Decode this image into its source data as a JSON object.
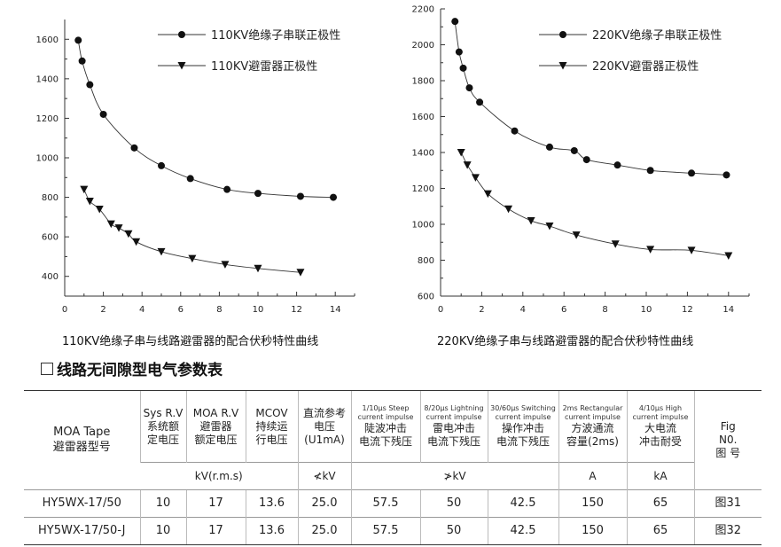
{
  "chart_data": [
    {
      "type": "scatter",
      "title": "",
      "xlim": [
        0,
        15
      ],
      "ylim": [
        300,
        1700
      ],
      "xticks": [
        "0",
        "2",
        "4",
        "6",
        "8",
        "10",
        "12",
        "14"
      ],
      "yticks": [
        "400",
        "600",
        "800",
        "1000",
        "1200",
        "1400",
        "1600"
      ],
      "legend_position": "top-right",
      "series": [
        {
          "name": "110KV绝缘子串联正极性",
          "marker": "circle",
          "x": [
            0.7,
            0.9,
            1.3,
            2.0,
            3.6,
            5.0,
            6.5,
            8.4,
            10.0,
            12.2,
            13.9
          ],
          "y": [
            1595,
            1490,
            1370,
            1220,
            1050,
            960,
            895,
            840,
            820,
            805,
            800
          ]
        },
        {
          "name": "110KV避雷器正极性",
          "marker": "triangle-down",
          "x": [
            1.0,
            1.3,
            1.8,
            2.4,
            2.8,
            3.3,
            3.7,
            5.0,
            6.6,
            8.3,
            10.0,
            12.2
          ],
          "y": [
            840,
            780,
            740,
            665,
            645,
            615,
            575,
            525,
            490,
            460,
            440,
            420
          ]
        }
      ]
    },
    {
      "type": "scatter",
      "title": "",
      "xlim": [
        0,
        15
      ],
      "ylim": [
        600,
        2200
      ],
      "xticks": [
        "0",
        "2",
        "4",
        "6",
        "8",
        "10",
        "12",
        "14"
      ],
      "yticks": [
        "600",
        "800",
        "1000",
        "1200",
        "1400",
        "1600",
        "1800",
        "2000",
        "2200"
      ],
      "legend_position": "top-right",
      "series": [
        {
          "name": "220KV绝缘子串联正极性",
          "marker": "circle",
          "x": [
            0.7,
            0.9,
            1.1,
            1.4,
            1.9,
            3.6,
            5.3,
            6.5,
            7.1,
            8.6,
            10.2,
            12.2,
            13.9
          ],
          "y": [
            2130,
            1960,
            1870,
            1760,
            1680,
            1520,
            1430,
            1410,
            1360,
            1330,
            1300,
            1285,
            1275
          ]
        },
        {
          "name": "220KV避雷器正极性",
          "marker": "triangle-down",
          "x": [
            1.0,
            1.3,
            1.7,
            2.3,
            3.3,
            4.4,
            5.3,
            6.6,
            8.5,
            10.2,
            12.2,
            14.0
          ],
          "y": [
            1400,
            1330,
            1260,
            1170,
            1085,
            1020,
            990,
            940,
            890,
            860,
            855,
            825
          ]
        }
      ]
    }
  ],
  "captions": {
    "left": "110KV绝缘子串与线路避雷器的配合伏秒特性曲线",
    "right": "220KV绝缘子串与线路避雷器的配合伏秒特性曲线"
  },
  "section_title": "线路无间隙型电气参数表",
  "table": {
    "headers": [
      {
        "line1": "MOA Tape",
        "line2": "避雷器型号"
      },
      {
        "en": "Sys R.V",
        "cn1": "系统额",
        "cn2": "定电压"
      },
      {
        "en": "MOA R.V",
        "cn1": "避雷器",
        "cn2": "额定电压"
      },
      {
        "en": "MCOV",
        "cn1": "持续运",
        "cn2": "行电压"
      },
      {
        "cn1": "直流参考",
        "cn2": "电压",
        "cn3": "(U1mA)"
      },
      {
        "en1": "1/10μs Steep",
        "en2": "current impulse",
        "cn1": "陡波冲击",
        "cn2": "电流下残压"
      },
      {
        "en1": "8/20μs Lightning",
        "en2": "current impulse",
        "cn1": "雷电冲击",
        "cn2": "电流下残压"
      },
      {
        "en1": "30/60μs Switching",
        "en2": "current impulse",
        "cn1": "操作冲击",
        "cn2": "电流下残压"
      },
      {
        "en1": "2ms Rectangular",
        "en2": "current impulse",
        "cn1": "方波通流",
        "cn2": "容量(2ms)"
      },
      {
        "en1": "4/10μs High",
        "en2": "current impulse",
        "cn1": "大电流",
        "cn2": "冲击耐受"
      },
      {
        "line1": "Fig",
        "line2": "N0.",
        "line3": "图 号"
      }
    ],
    "units": {
      "kv_rms": "kV(r.m.s)",
      "kv_le": "≮kV",
      "kv_ge": "≯kV",
      "amp": "A",
      "kiloamp": "kA"
    },
    "rows": [
      {
        "model": "HY5WX-17/50",
        "sys_rv": "10",
        "moa_rv": "17",
        "mcov": "13.6",
        "dc_ref": "25.0",
        "steep": "57.5",
        "lightning": "50",
        "switching": "42.5",
        "rect": "150",
        "high": "65",
        "fig": "图31"
      },
      {
        "model": "HY5WX-17/50-J",
        "sys_rv": "10",
        "moa_rv": "17",
        "mcov": "13.6",
        "dc_ref": "25.0",
        "steep": "57.5",
        "lightning": "50",
        "switching": "42.5",
        "rect": "150",
        "high": "65",
        "fig": "图32"
      }
    ]
  }
}
